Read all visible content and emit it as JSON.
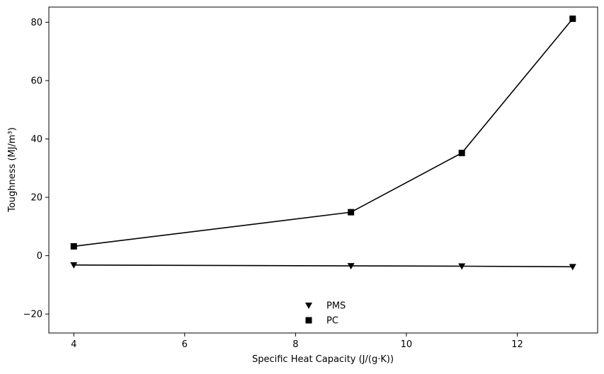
{
  "chart_data": {
    "type": "line",
    "title": "",
    "xlabel": "Specific Heat Capacity (J/(g·K))",
    "ylabel": "Toughness (MJ/m³)",
    "xlim": [
      3.55,
      13.45
    ],
    "ylim": [
      -26.5,
      85.2
    ],
    "xticks": [
      4,
      6,
      8,
      10,
      12
    ],
    "yticks": [
      -20,
      0,
      20,
      40,
      60,
      80
    ],
    "ytick_labels": [
      "−20",
      "0",
      "20",
      "40",
      "60",
      "80"
    ],
    "grid": false,
    "legend_position": "bottom-center",
    "series": [
      {
        "name": "PMS",
        "marker": "triangle-down",
        "color": "#000000",
        "x": [
          4,
          9,
          11,
          13
        ],
        "y": [
          -3.2,
          -3.5,
          -3.6,
          -3.8
        ]
      },
      {
        "name": "PC",
        "marker": "square",
        "color": "#000000",
        "x": [
          4,
          9,
          11,
          13
        ],
        "y": [
          3.2,
          14.9,
          35.2,
          81.2
        ]
      }
    ]
  }
}
